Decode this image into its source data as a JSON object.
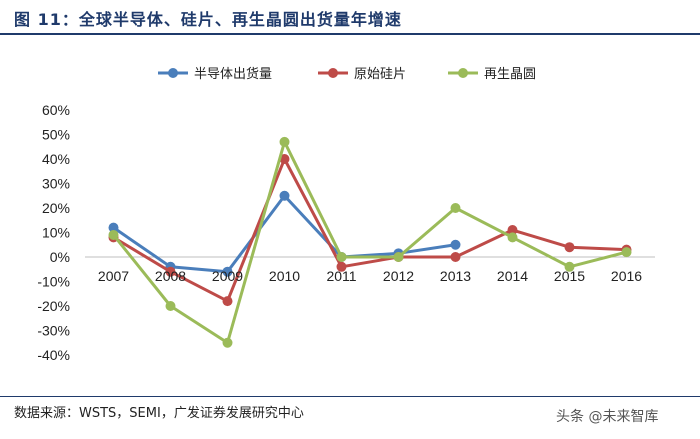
{
  "figure": {
    "title": "图  11：全球半导体、硅片、再生晶圆出货量年增速",
    "source": "数据来源：WSTS，SEMI，广发证券发展研究中心",
    "watermark": "头条 @未来智库"
  },
  "chart_data": {
    "type": "line",
    "categories": [
      "2007",
      "2008",
      "2009",
      "2010",
      "2011",
      "2012",
      "2013",
      "2014",
      "2015",
      "2016"
    ],
    "ylim": [
      -40,
      60
    ],
    "yticks": [
      -40,
      -30,
      -20,
      -10,
      0,
      10,
      20,
      30,
      40,
      50,
      60
    ],
    "ytick_suffix": "%",
    "legend_position": "top",
    "grid": false,
    "series": [
      {
        "name": "半导体出货量",
        "color": "#4a7ebb",
        "values": [
          12,
          -4,
          -6,
          25,
          0,
          1.5,
          5,
          null,
          null,
          null
        ]
      },
      {
        "name": "原始硅片",
        "color": "#be4b48",
        "values": [
          8,
          -6,
          -18,
          40,
          -4,
          0,
          0,
          11,
          4,
          3
        ]
      },
      {
        "name": "再生晶圆",
        "color": "#9bbb59",
        "values": [
          9,
          -20,
          -35,
          47,
          0,
          0,
          20,
          8,
          -4,
          2
        ]
      }
    ]
  }
}
